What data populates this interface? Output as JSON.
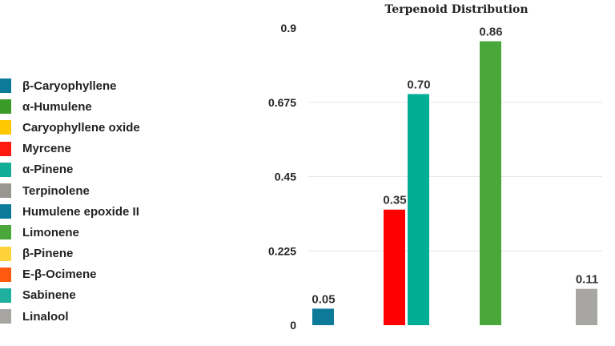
{
  "chart_data": {
    "type": "bar",
    "title": "Terpenoid Distribution",
    "xlabel": "",
    "ylabel": "",
    "ylim": [
      0,
      0.9
    ],
    "yticks": [
      "0",
      "0.225",
      "0.45",
      "0.675",
      "0.9"
    ],
    "grid": true,
    "legend_placement": "left",
    "legend": [
      {
        "name": "β-Caryophyllene",
        "color": "#0e7a9a"
      },
      {
        "name": "α-Humulene",
        "color": "#3a9a2a"
      },
      {
        "name": "Caryophyllene oxide",
        "color": "#ffc800"
      },
      {
        "name": "Myrcene",
        "color": "#ff1a10"
      },
      {
        "name": "α-Pinene",
        "color": "#12ad96"
      },
      {
        "name": "Terpinolene",
        "color": "#999590"
      },
      {
        "name": "Humulene epoxide II",
        "color": "#0e7a9a"
      },
      {
        "name": "Limonene",
        "color": "#4aa83a"
      },
      {
        "name": "β-Pinene",
        "color": "#ffd23a"
      },
      {
        "name": "E-β-Ocimene",
        "color": "#ff5a10"
      },
      {
        "name": "Sabinene",
        "color": "#20b0a0"
      },
      {
        "name": "Linalool",
        "color": "#a8a6a2"
      }
    ],
    "bars": [
      {
        "category": "β-Caryophyllene",
        "value": 0.05,
        "label": "0.05",
        "color": "#0e7a9a"
      },
      {
        "category": "Myrcene",
        "value": 0.35,
        "label": "0.35",
        "color": "#ff0000"
      },
      {
        "category": "α-Pinene",
        "value": 0.7,
        "label": "0.70",
        "color": "#00ae96"
      },
      {
        "category": "Limonene",
        "value": 0.86,
        "label": "0.86",
        "color": "#4aa83a"
      },
      {
        "category": "Linalool",
        "value": 0.11,
        "label": "0.11",
        "color": "#a8a6a2"
      }
    ]
  }
}
